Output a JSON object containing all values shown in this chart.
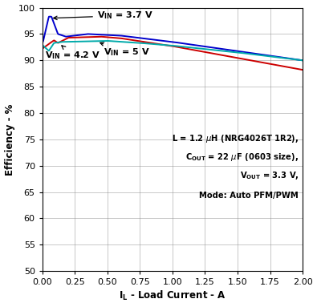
{
  "xlabel": "I$_\\mathregular{L}$ - Load Current - A",
  "ylabel": "Efficiency - %",
  "xlim": [
    0,
    2
  ],
  "ylim": [
    50,
    100
  ],
  "xticks": [
    0,
    0.25,
    0.5,
    0.75,
    1,
    1.25,
    1.5,
    1.75,
    2
  ],
  "yticks": [
    50,
    55,
    60,
    65,
    70,
    75,
    80,
    85,
    90,
    95,
    100
  ],
  "colors": {
    "vin_37": "#0000CC",
    "vin_42": "#CC0000",
    "vin_5": "#00AAAA"
  },
  "background_color": "#ffffff",
  "grid_color": "#808080"
}
